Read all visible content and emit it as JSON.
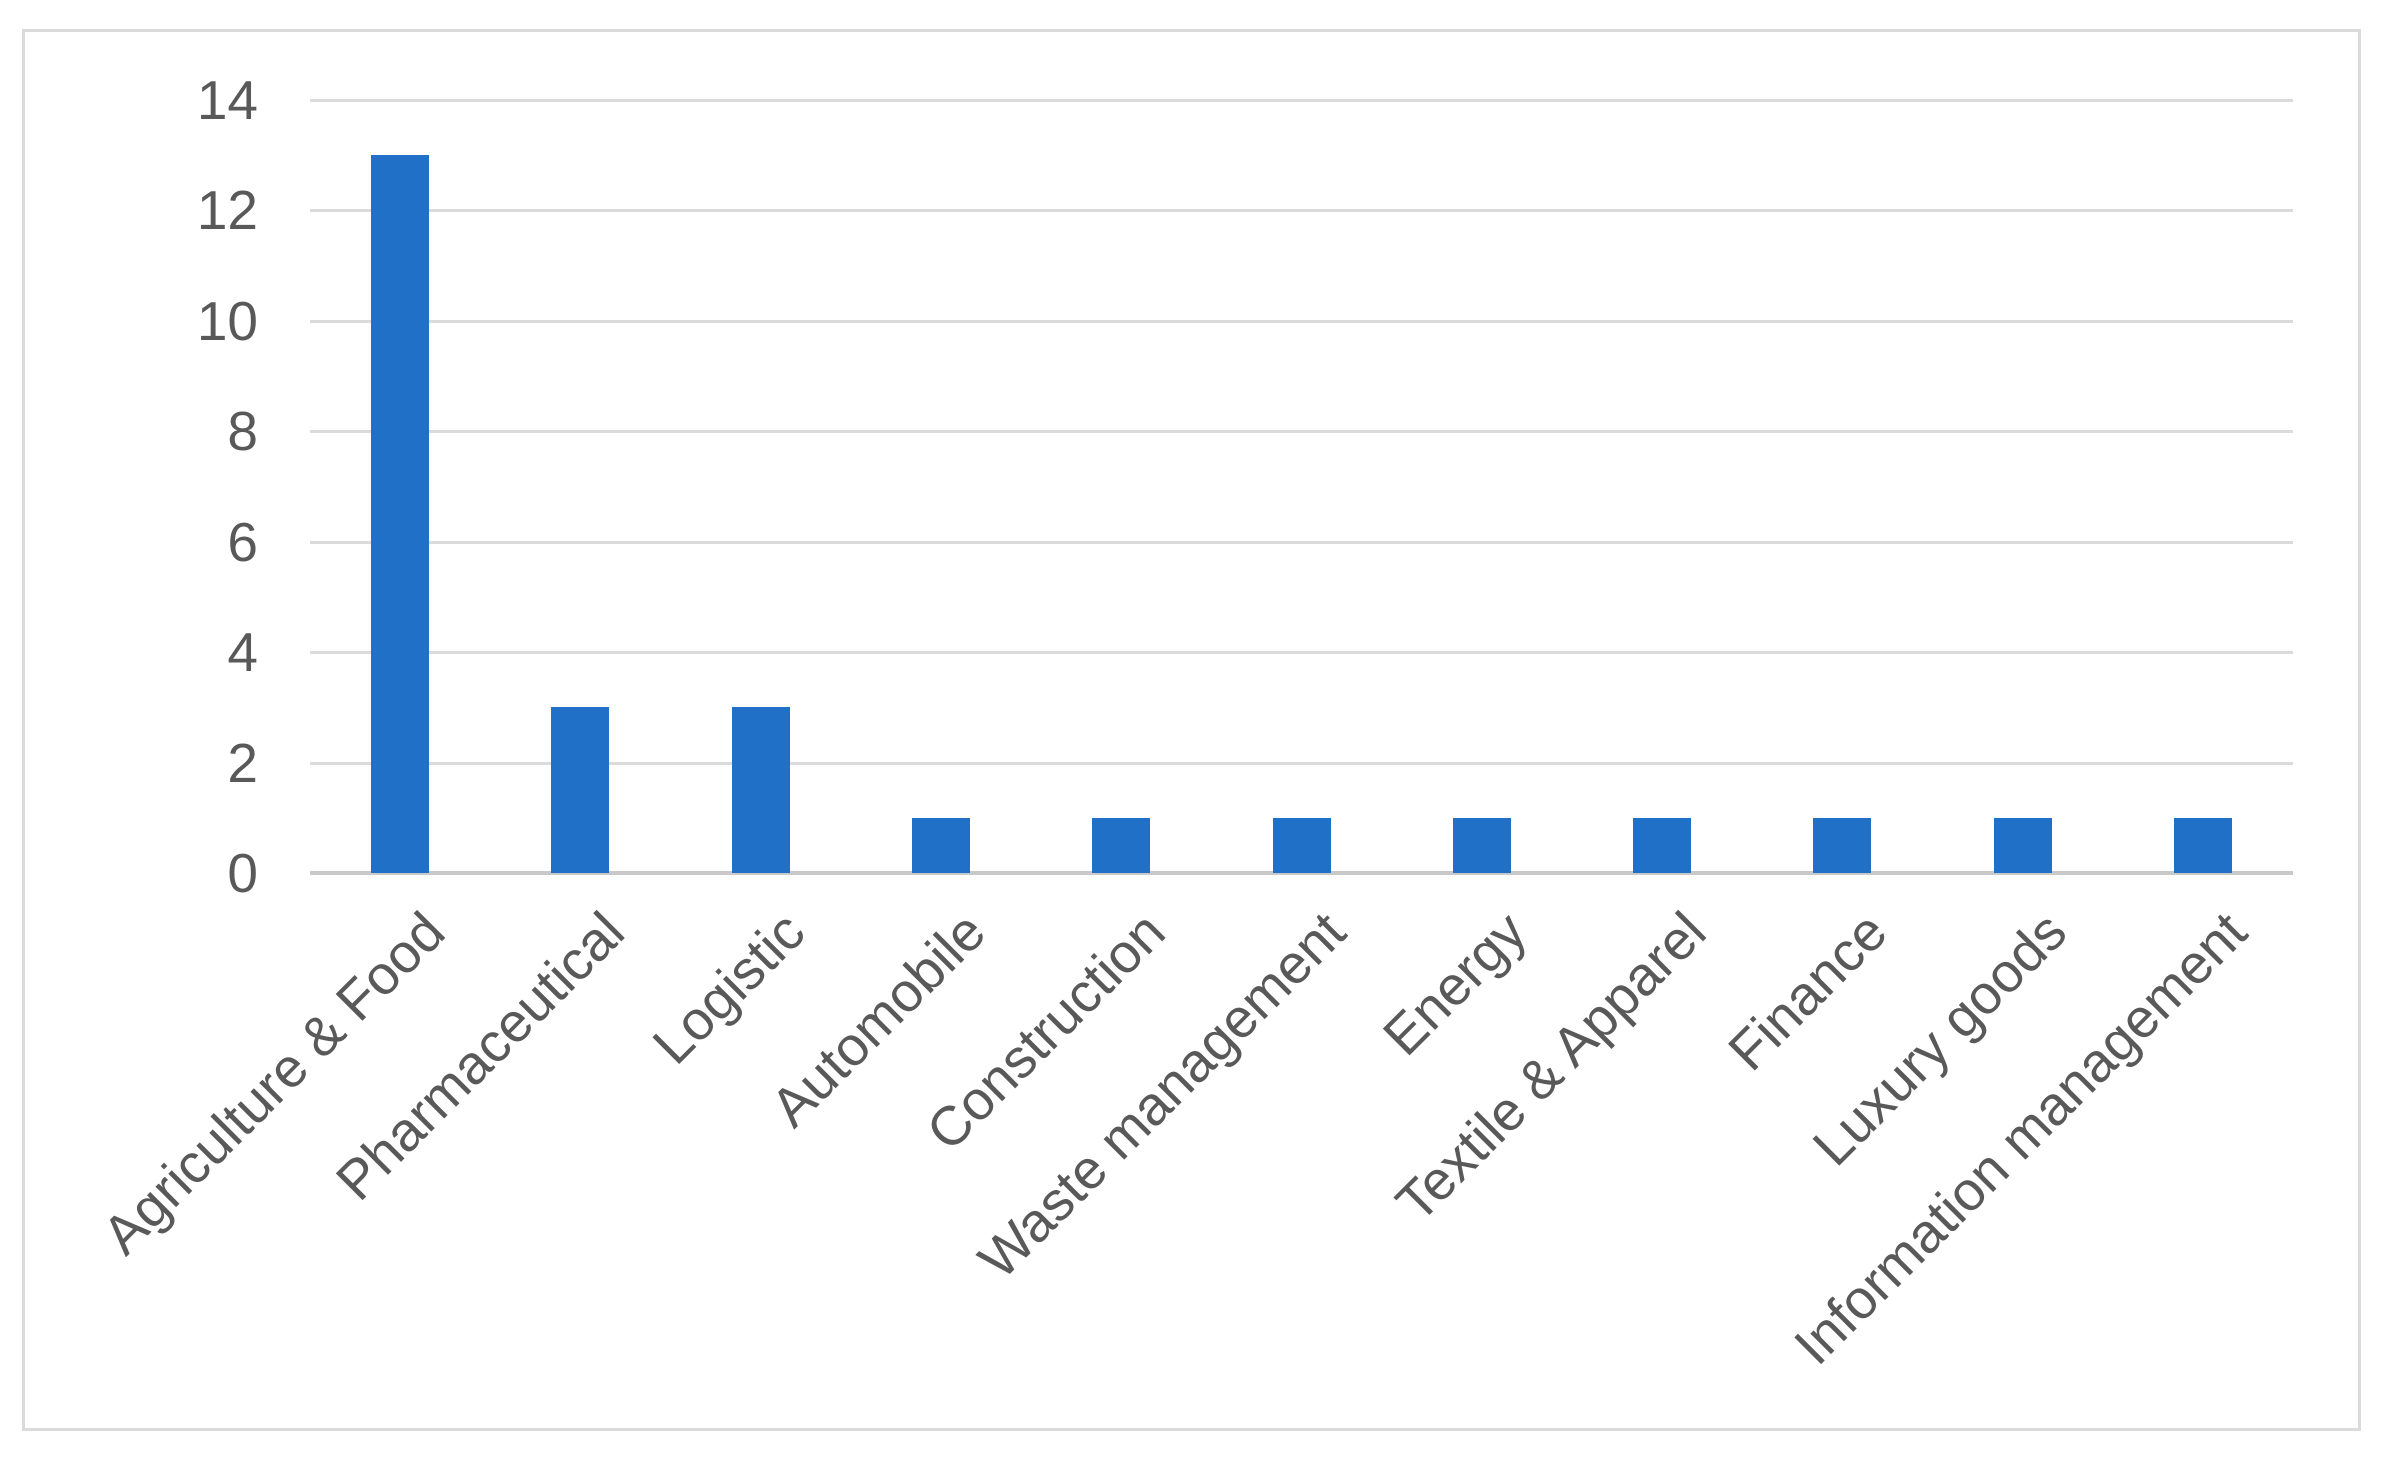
{
  "figure": {
    "kind": "excel-style-column-chart",
    "title": "",
    "background_color": "#ffffff",
    "border_color": "#dbdbdb",
    "text_color": "#595959",
    "bar_color": "#2170c7",
    "gridline_color": "#dbdbdb",
    "axis_line_color": "#c9c9c9"
  },
  "chart_data": {
    "type": "bar",
    "categories": [
      "Agriculture & Food",
      "Pharmaceutical",
      "Logistic",
      "Automobile",
      "Construction",
      "Waste management",
      "Energy",
      "Textile & Apparel",
      "Finance",
      "Luxury goods",
      "Information management"
    ],
    "values": [
      13,
      3,
      3,
      1,
      1,
      1,
      1,
      1,
      1,
      1,
      1
    ],
    "title": "",
    "xlabel": "",
    "ylabel": "",
    "ylim": [
      0,
      14
    ],
    "y_ticks": [
      0,
      2,
      4,
      6,
      8,
      10,
      12,
      14
    ],
    "grid": "horizontal",
    "legend": "none",
    "x_label_rotation_deg": 45
  }
}
